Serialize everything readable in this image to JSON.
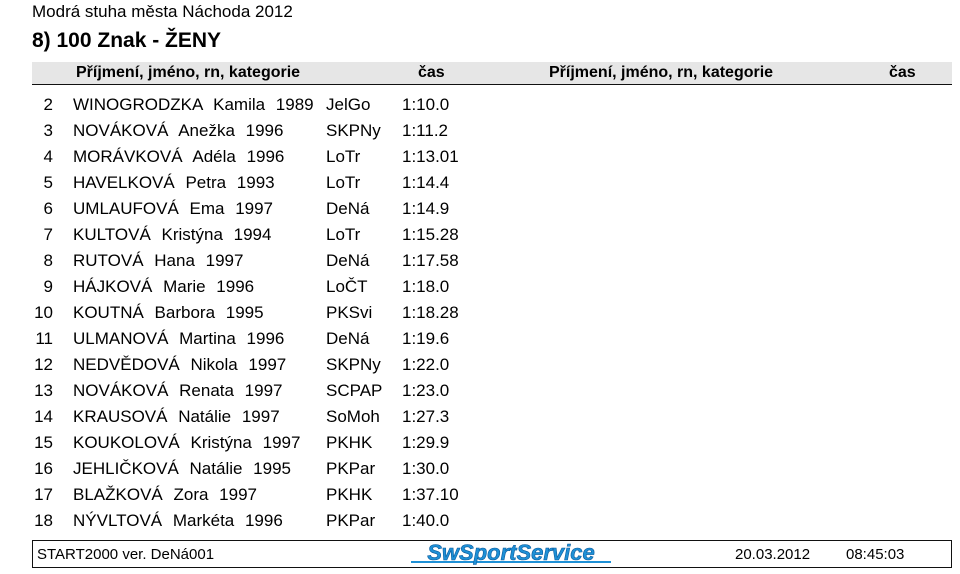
{
  "event_name": "Modrá stuha města Náchoda 2012",
  "race_title": "8)  100  Znak  -  ŽENY",
  "header": {
    "col_name": "Příjmení, jméno, rn, kategorie",
    "col_time": "čas",
    "col_name_2": "Příjmení, jméno, rn, kategorie",
    "col_time_2": "čas"
  },
  "results": [
    {
      "rank": "2",
      "name": "WINOGRODZKA Kamila 1989",
      "club": "JelGo",
      "time": "1:10.0"
    },
    {
      "rank": "3",
      "name": "NOVÁKOVÁ Anežka 1996",
      "club": "SKPNy",
      "time": "1:11.2"
    },
    {
      "rank": "4",
      "name": "MORÁVKOVÁ Adéla 1996",
      "club": "LoTr",
      "time": "1:13.01"
    },
    {
      "rank": "5",
      "name": "HAVELKOVÁ Petra 1993",
      "club": "LoTr",
      "time": "1:14.4"
    },
    {
      "rank": "6",
      "name": "UMLAUFOVÁ Ema 1997",
      "club": "DeNá",
      "time": "1:14.9"
    },
    {
      "rank": "7",
      "name": "KULTOVÁ Kristýna 1994",
      "club": "LoTr",
      "time": "1:15.28"
    },
    {
      "rank": "8",
      "name": "RUTOVÁ Hana 1997",
      "club": "DeNá",
      "time": "1:17.58"
    },
    {
      "rank": "9",
      "name": "HÁJKOVÁ Marie 1996",
      "club": "LoČT",
      "time": "1:18.0"
    },
    {
      "rank": "10",
      "name": "KOUTNÁ Barbora 1995",
      "club": "PKSvi",
      "time": "1:18.28"
    },
    {
      "rank": "11",
      "name": "ULMANOVÁ Martina 1996",
      "club": "DeNá",
      "time": "1:19.6"
    },
    {
      "rank": "12",
      "name": "NEDVĚDOVÁ Nikola 1997",
      "club": "SKPNy",
      "time": "1:22.0"
    },
    {
      "rank": "13",
      "name": "NOVÁKOVÁ Renata 1997",
      "club": "SCPAP",
      "time": "1:23.0"
    },
    {
      "rank": "14",
      "name": "KRAUSOVÁ Natálie 1997",
      "club": "SoMoh",
      "time": "1:27.3"
    },
    {
      "rank": "15",
      "name": "KOUKOLOVÁ Kristýna 1997",
      "club": "PKHK",
      "time": "1:29.9"
    },
    {
      "rank": "16",
      "name": "JEHLIČKOVÁ Natálie 1995",
      "club": "PKPar",
      "time": "1:30.0"
    },
    {
      "rank": "17",
      "name": "BLAŽKOVÁ Zora 1997",
      "club": "PKHK",
      "time": "1:37.10"
    },
    {
      "rank": "18",
      "name": "NÝVLTOVÁ Markéta 1996",
      "club": "PKPar",
      "time": "1:40.0"
    }
  ],
  "footer": {
    "software": "START2000 ver.  DeNá001",
    "logo_text": "SwSportService",
    "logo_color": "#1e90d6",
    "date": "20.03.2012",
    "time": "08:45:03"
  }
}
